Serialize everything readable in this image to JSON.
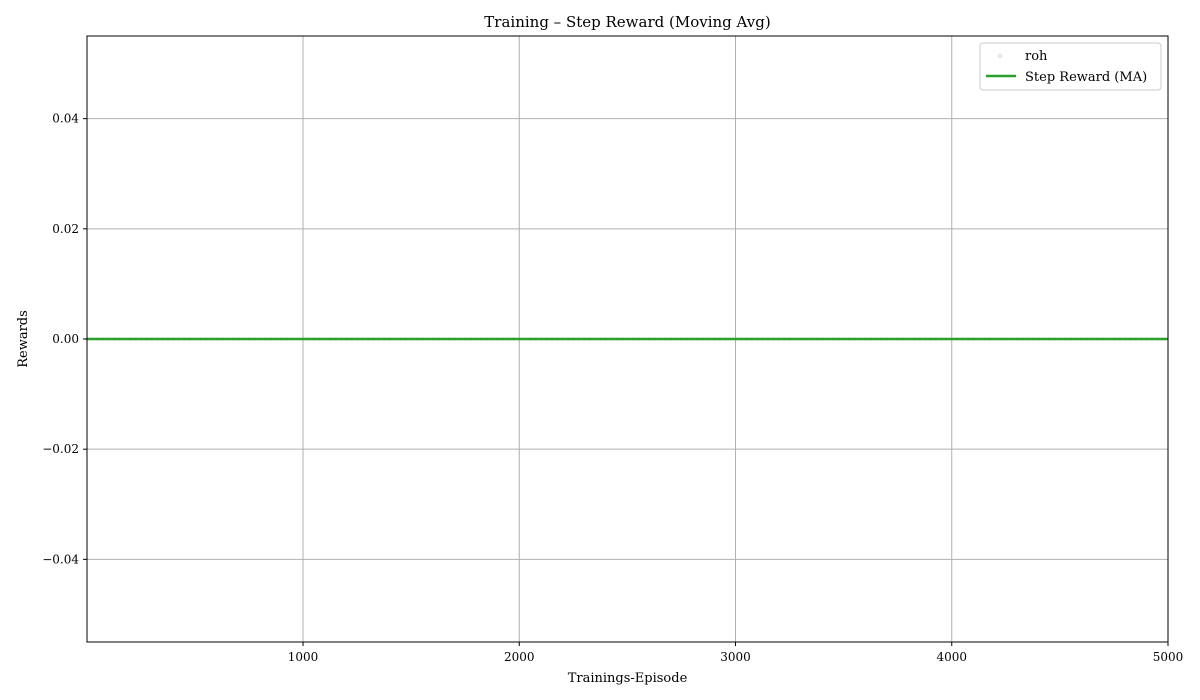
{
  "chart_data": {
    "type": "line",
    "title": "Training – Step Reward (Moving Avg)",
    "xlabel": "Trainings-Episode",
    "ylabel": "Rewards",
    "xlim": [
      1,
      5000
    ],
    "ylim": [
      -0.055,
      0.055
    ],
    "xticks": [
      1000,
      2000,
      3000,
      4000,
      5000
    ],
    "xtick_labels": [
      "1000",
      "2000",
      "3000",
      "4000",
      "5000"
    ],
    "yticks": [
      -0.04,
      -0.02,
      0.0,
      0.02,
      0.04
    ],
    "ytick_labels": [
      "−0.04",
      "−0.02",
      "0.00",
      "0.02",
      "0.04"
    ],
    "grid": true,
    "legend_position": "top-right",
    "series": [
      {
        "name": "roh",
        "kind": "scatter",
        "color": "#a6a6a6",
        "alpha": 0.25,
        "x": [
          1,
          5000
        ],
        "y": [
          0,
          0
        ],
        "note_all_values": "every episode value is 0"
      },
      {
        "name": "Step Reward (MA)",
        "kind": "line",
        "color": "#2ca02c",
        "x": [
          1,
          5000
        ],
        "y": [
          0,
          0
        ]
      }
    ]
  }
}
